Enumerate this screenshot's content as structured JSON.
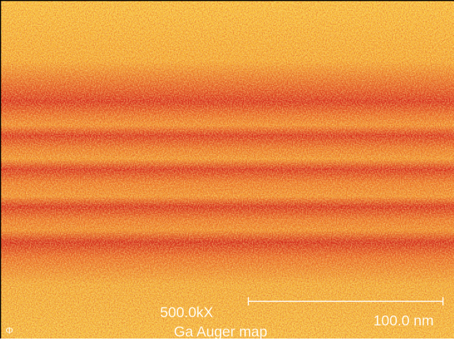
{
  "image": {
    "magnification": "500.0kX",
    "caption": "Ga Auger map",
    "scale_bar_label": "100.0 nm",
    "logo": "Φ"
  }
}
